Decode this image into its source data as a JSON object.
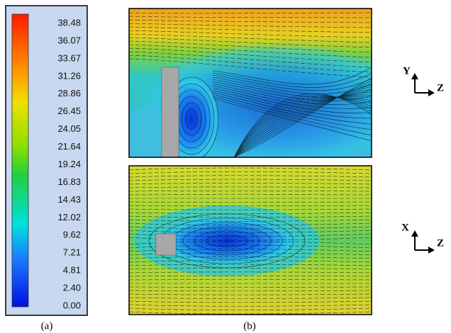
{
  "colorbar": {
    "labels": [
      "38.48",
      "36.07",
      "33.67",
      "31.26",
      "28.86",
      "26.45",
      "24.05",
      "21.64",
      "19.24",
      "16.83",
      "14.43",
      "12.02",
      "9.62",
      "7.21",
      "4.81",
      "2.40",
      "0.00"
    ]
  },
  "panels": [
    {
      "axes": {
        "vertical": "Y",
        "horizontal": "Z"
      }
    },
    {
      "axes": {
        "vertical": "X",
        "horizontal": "Z"
      }
    }
  ],
  "captions": [
    "(a)",
    "(b)"
  ]
}
